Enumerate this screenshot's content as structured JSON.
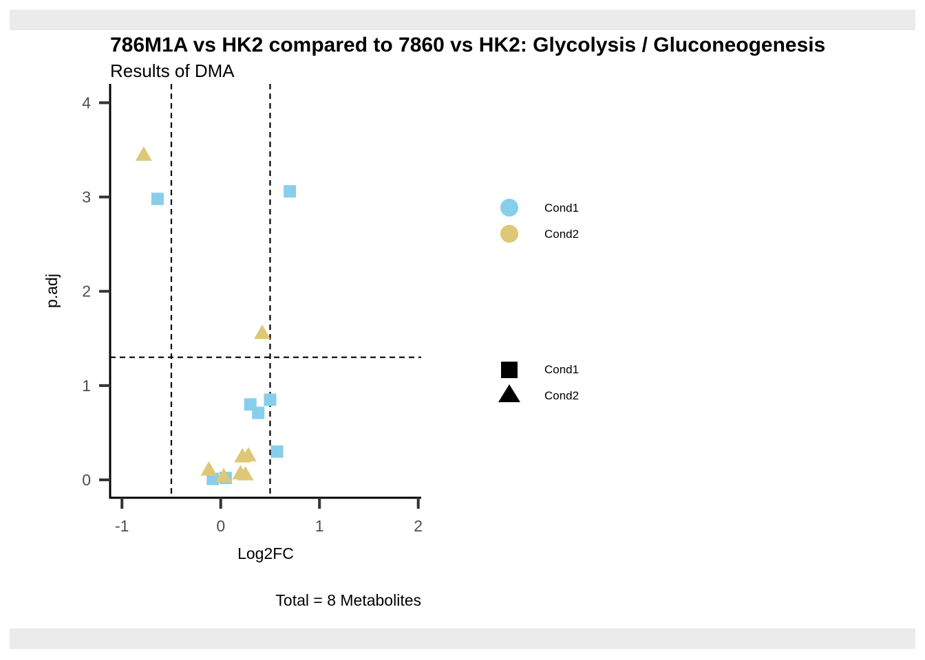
{
  "chart_data": {
    "type": "scatter",
    "title": "786M1A vs HK2 compared to 7860 vs HK2: Glycolysis / Gluconeogenesis",
    "subtitle": "Results of DMA",
    "xlabel": "Log2FC",
    "ylabel": "p.adj",
    "caption": "Total = 8 Metabolites",
    "xlim": [
      -1.12,
      2.03
    ],
    "ylim": [
      -0.19,
      4.2
    ],
    "xticks": [
      "-1",
      "0",
      "1",
      "2"
    ],
    "yticks": [
      "0",
      "1",
      "2",
      "3",
      "4"
    ],
    "thresholds": {
      "x": [
        -0.5,
        0.5
      ],
      "y": 1.3
    },
    "colors": {
      "Cond1": "#87ceeb",
      "Cond2": "#ddc877"
    },
    "series": [
      {
        "name": "Cond1",
        "shape": "square",
        "points": [
          {
            "x": -0.64,
            "y": 2.98
          },
          {
            "x": 0.7,
            "y": 3.06
          },
          {
            "x": 0.5,
            "y": 0.85
          },
          {
            "x": 0.3,
            "y": 0.8
          },
          {
            "x": 0.38,
            "y": 0.71
          },
          {
            "x": 0.57,
            "y": 0.3
          },
          {
            "x": -0.08,
            "y": 0.01
          },
          {
            "x": 0.05,
            "y": 0.02
          }
        ]
      },
      {
        "name": "Cond2",
        "shape": "triangle",
        "points": [
          {
            "x": -0.78,
            "y": 3.45
          },
          {
            "x": 0.42,
            "y": 1.56
          },
          {
            "x": -0.12,
            "y": 0.11
          },
          {
            "x": 0.22,
            "y": 0.25
          },
          {
            "x": 0.28,
            "y": 0.26
          },
          {
            "x": 0.03,
            "y": 0.04
          },
          {
            "x": 0.2,
            "y": 0.07
          },
          {
            "x": 0.25,
            "y": 0.06
          }
        ]
      }
    ],
    "legend": {
      "placement": "right",
      "color": {
        "items": [
          "Cond1",
          "Cond2"
        ]
      },
      "shape": {
        "items": [
          "Cond1",
          "Cond2"
        ]
      }
    }
  }
}
